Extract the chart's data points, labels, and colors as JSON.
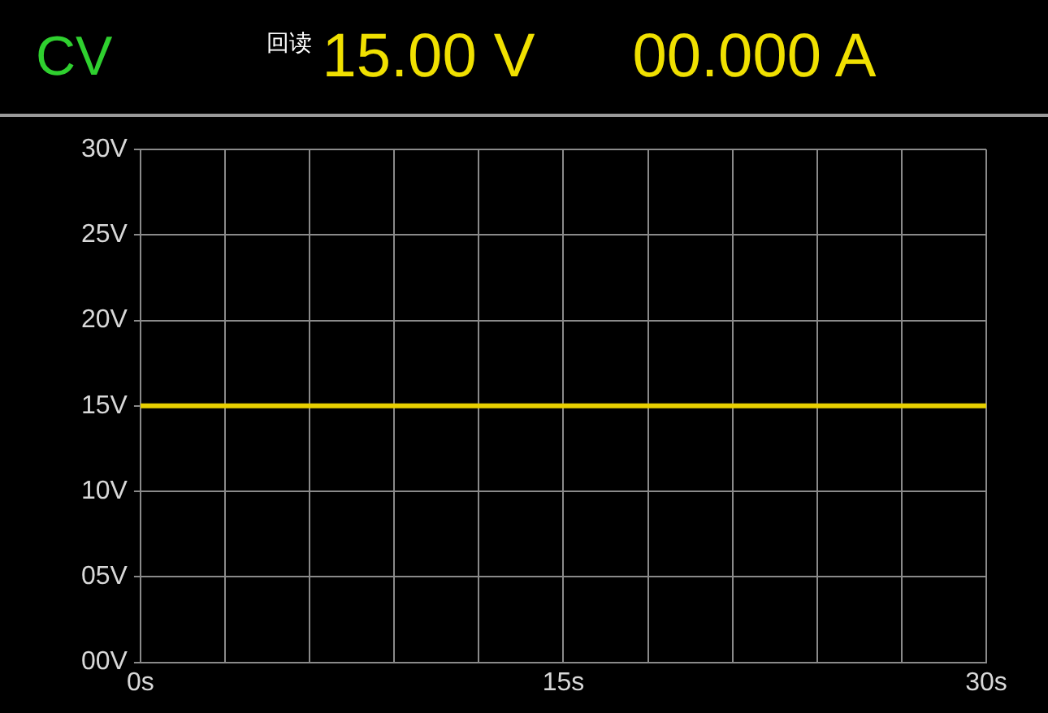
{
  "chart_data": {
    "type": "line",
    "title": "CV",
    "annotations": [
      "回读",
      "15.00 V",
      "00.000 A"
    ],
    "x": [
      0,
      30
    ],
    "series": [
      {
        "color": "#e8d000",
        "values": [
          15,
          15
        ]
      }
    ],
    "xlim": [
      0,
      30
    ],
    "xticks": [
      {
        "value": 0,
        "label": "0s"
      },
      {
        "value": 3,
        "label": null
      },
      {
        "value": 6,
        "label": null
      },
      {
        "value": 9,
        "label": null
      },
      {
        "value": 12,
        "label": null
      },
      {
        "value": 15,
        "label": "15s"
      },
      {
        "value": 18,
        "label": null
      },
      {
        "value": 21,
        "label": null
      },
      {
        "value": 24,
        "label": null
      },
      {
        "value": 27,
        "label": null
      },
      {
        "value": 30,
        "label": "30s"
      }
    ],
    "ylim": [
      0,
      30
    ],
    "yticks": [
      {
        "value": 0,
        "label": "00V"
      },
      {
        "value": 5,
        "label": "05V"
      },
      {
        "value": 10,
        "label": "10V"
      },
      {
        "value": 15,
        "label": "15V"
      },
      {
        "value": 20,
        "label": "20V"
      },
      {
        "value": 25,
        "label": "25V"
      },
      {
        "value": 30,
        "label": "30V"
      }
    ],
    "grid": true,
    "legend": false,
    "marker": "none",
    "line_style": "solid"
  }
}
